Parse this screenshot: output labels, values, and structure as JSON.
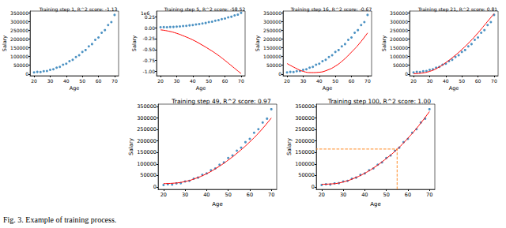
{
  "caption": "Fig. 3. Example of training process.",
  "chart_data": [
    {
      "type": "scatter",
      "title": "Training step 1, R^2 score: -1.13",
      "x_label": "Age",
      "y_label": "Salary",
      "xlim": [
        17.5,
        72.5
      ],
      "xticks": [
        20,
        30,
        40,
        50,
        60,
        70
      ],
      "ylim": [
        -10000,
        360000
      ],
      "yticks": [
        0,
        50000,
        100000,
        150000,
        200000,
        250000,
        300000,
        350000
      ],
      "series": [
        {
          "type": "scatter",
          "color": "#1f77b4",
          "marker": "circle",
          "x": [
            20,
            22,
            24,
            26,
            28,
            30,
            32,
            34,
            36,
            38,
            40,
            42,
            44,
            46,
            48,
            50,
            52,
            54,
            56,
            58,
            60,
            62,
            64,
            66,
            68,
            70
          ],
          "values": [
            9000,
            12000,
            11000,
            16000,
            17000,
            24000,
            27000,
            36000,
            41000,
            53000,
            59000,
            73000,
            81000,
            97000,
            107000,
            126000,
            137000,
            158000,
            171000,
            195000,
            209000,
            236000,
            251000,
            280000,
            297000,
            338000
          ]
        }
      ]
    },
    {
      "type": "scatter",
      "title": "Training step 5, R^2 score: -58.52",
      "x_label": "Age",
      "y_label": "Salary",
      "y_offset_label": "1e6",
      "xlim": [
        17.5,
        72.5
      ],
      "xticks": [
        20,
        30,
        40,
        50,
        60,
        70
      ],
      "ylim": [
        -1100000,
        380000
      ],
      "yticks": [
        {
          "value": -1000000,
          "label": "-1.00"
        },
        {
          "value": -750000,
          "label": "-0.75"
        },
        {
          "value": -500000,
          "label": "-0.50"
        },
        {
          "value": -250000,
          "label": "-0.25"
        },
        {
          "value": 0,
          "label": "0.00"
        },
        {
          "value": 250000,
          "label": "0.25"
        }
      ],
      "series": [
        {
          "type": "scatter",
          "color": "#1f77b4",
          "marker": "circle",
          "x": [
            20,
            22,
            24,
            26,
            28,
            30,
            32,
            34,
            36,
            38,
            40,
            42,
            44,
            46,
            48,
            50,
            52,
            54,
            56,
            58,
            60,
            62,
            64,
            66,
            68,
            70
          ],
          "values": [
            9000,
            12000,
            11000,
            16000,
            17000,
            24000,
            27000,
            36000,
            41000,
            53000,
            59000,
            73000,
            81000,
            97000,
            107000,
            126000,
            137000,
            158000,
            171000,
            195000,
            209000,
            236000,
            251000,
            280000,
            297000,
            338000
          ]
        },
        {
          "type": "line",
          "color": "#ff0000",
          "line_style": "solid",
          "x": [
            20,
            25,
            30,
            35,
            40,
            45,
            50,
            55,
            60,
            65,
            70
          ],
          "values": [
            -50000,
            -80000,
            -130000,
            -200000,
            -280000,
            -380000,
            -490000,
            -610000,
            -750000,
            -900000,
            -1050000
          ]
        }
      ]
    },
    {
      "type": "scatter",
      "title": "Training step 16, R^2 score: -0.67",
      "x_label": "Age",
      "y_label": "Salary",
      "xlim": [
        17.5,
        72.5
      ],
      "xticks": [
        20,
        30,
        40,
        50,
        60,
        70
      ],
      "ylim": [
        -10000,
        360000
      ],
      "yticks": [
        0,
        50000,
        100000,
        150000,
        200000,
        250000,
        300000,
        350000
      ],
      "series": [
        {
          "type": "scatter",
          "color": "#1f77b4",
          "marker": "circle",
          "x": [
            20,
            22,
            24,
            26,
            28,
            30,
            32,
            34,
            36,
            38,
            40,
            42,
            44,
            46,
            48,
            50,
            52,
            54,
            56,
            58,
            60,
            62,
            64,
            66,
            68,
            70
          ],
          "values": [
            9000,
            12000,
            11000,
            16000,
            17000,
            24000,
            27000,
            36000,
            41000,
            53000,
            59000,
            73000,
            81000,
            97000,
            107000,
            126000,
            137000,
            158000,
            171000,
            195000,
            209000,
            236000,
            251000,
            280000,
            297000,
            338000
          ]
        },
        {
          "type": "line",
          "color": "#ff0000",
          "line_style": "solid",
          "x": [
            20,
            25,
            30,
            35,
            40,
            45,
            50,
            55,
            60,
            65,
            70
          ],
          "values": [
            60000,
            35000,
            15000,
            8000,
            10000,
            22000,
            45000,
            80000,
            125000,
            175000,
            235000
          ]
        }
      ]
    },
    {
      "type": "scatter",
      "title": "Training step 21, R^2 score: 0.81",
      "x_label": "Age",
      "y_label": "Salary",
      "xlim": [
        17.5,
        72.5
      ],
      "xticks": [
        20,
        30,
        40,
        50,
        60,
        70
      ],
      "ylim": [
        -10000,
        360000
      ],
      "yticks": [
        0,
        50000,
        100000,
        150000,
        200000,
        250000,
        300000,
        350000
      ],
      "series": [
        {
          "type": "scatter",
          "color": "#1f77b4",
          "marker": "circle",
          "x": [
            20,
            22,
            24,
            26,
            28,
            30,
            32,
            34,
            36,
            38,
            40,
            42,
            44,
            46,
            48,
            50,
            52,
            54,
            56,
            58,
            60,
            62,
            64,
            66,
            68,
            70
          ],
          "values": [
            9000,
            12000,
            11000,
            16000,
            17000,
            24000,
            27000,
            36000,
            41000,
            53000,
            59000,
            73000,
            81000,
            97000,
            107000,
            126000,
            137000,
            158000,
            171000,
            195000,
            209000,
            236000,
            251000,
            280000,
            297000,
            338000
          ]
        },
        {
          "type": "line",
          "color": "#ff0000",
          "line_style": "solid",
          "x": [
            20,
            25,
            30,
            35,
            40,
            45,
            50,
            55,
            60,
            65,
            70
          ],
          "values": [
            2000,
            5000,
            15000,
            35000,
            65000,
            100000,
            140000,
            185000,
            235000,
            290000,
            345000
          ]
        }
      ]
    },
    {
      "type": "scatter",
      "title": "Training step 49, R^2 score: 0.97",
      "x_label": "Age",
      "y_label": "Salary",
      "xlim": [
        17.5,
        72.5
      ],
      "xticks": [
        20,
        30,
        40,
        50,
        60,
        70
      ],
      "ylim": [
        -10000,
        360000
      ],
      "yticks": [
        0,
        50000,
        100000,
        150000,
        200000,
        250000,
        300000,
        350000
      ],
      "series": [
        {
          "type": "scatter",
          "color": "#1f77b4",
          "marker": "circle",
          "x": [
            20,
            22,
            24,
            26,
            28,
            30,
            32,
            34,
            36,
            38,
            40,
            42,
            44,
            46,
            48,
            50,
            52,
            54,
            56,
            58,
            60,
            62,
            64,
            66,
            68,
            70
          ],
          "values": [
            9000,
            12000,
            11000,
            16000,
            17000,
            24000,
            27000,
            36000,
            41000,
            53000,
            59000,
            73000,
            81000,
            97000,
            107000,
            126000,
            137000,
            158000,
            171000,
            195000,
            209000,
            236000,
            251000,
            280000,
            297000,
            338000
          ]
        },
        {
          "type": "line",
          "color": "#ff0000",
          "line_style": "solid",
          "x": [
            20,
            25,
            30,
            35,
            40,
            45,
            50,
            55,
            60,
            65,
            70
          ],
          "values": [
            15000,
            17000,
            24000,
            38000,
            58000,
            85000,
            117000,
            154000,
            196000,
            244000,
            300000
          ]
        }
      ]
    },
    {
      "type": "scatter",
      "title": "Training step 100, R^2 score: 1.00",
      "x_label": "Age",
      "y_label": "Salary",
      "xlim": [
        17.5,
        72.5
      ],
      "xticks": [
        20,
        30,
        40,
        50,
        60,
        70
      ],
      "ylim": [
        -10000,
        360000
      ],
      "yticks": [
        0,
        50000,
        100000,
        150000,
        200000,
        250000,
        300000,
        350000
      ],
      "series": [
        {
          "type": "scatter",
          "color": "#1f77b4",
          "marker": "circle",
          "x": [
            20,
            22,
            24,
            26,
            28,
            30,
            32,
            34,
            36,
            38,
            40,
            42,
            44,
            46,
            48,
            50,
            52,
            54,
            56,
            58,
            60,
            62,
            64,
            66,
            68,
            70
          ],
          "values": [
            9000,
            12000,
            11000,
            16000,
            17000,
            24000,
            27000,
            36000,
            41000,
            53000,
            59000,
            73000,
            81000,
            97000,
            107000,
            126000,
            137000,
            158000,
            171000,
            195000,
            209000,
            236000,
            251000,
            280000,
            297000,
            338000
          ]
        },
        {
          "type": "line",
          "color": "#ff0000",
          "line_style": "solid",
          "x": [
            20,
            25,
            30,
            35,
            40,
            45,
            50,
            55,
            60,
            65,
            70
          ],
          "values": [
            12000,
            14000,
            22000,
            38000,
            60000,
            89000,
            124000,
            164000,
            212000,
            266000,
            328000
          ]
        }
      ],
      "prediction": {
        "x": 55,
        "y": 165000,
        "color": "#ff7f0e",
        "line_style": "dashed"
      }
    }
  ]
}
